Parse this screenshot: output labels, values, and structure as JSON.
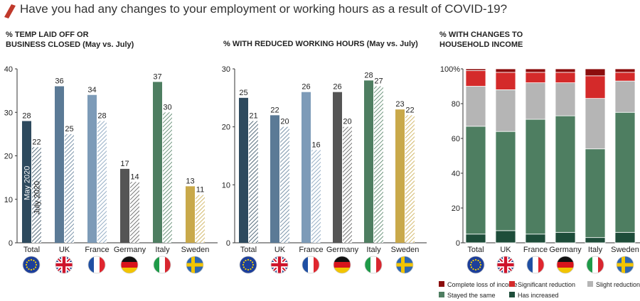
{
  "title": "Have you had any changes to your employment or working hours as a result of COVID-19?",
  "accent_color": "#c0392b",
  "flags": [
    "eu-flag-icon",
    "uk-flag-icon",
    "france-flag-icon",
    "germany-flag-icon",
    "italy-flag-icon",
    "sweden-flag-icon"
  ],
  "chart_data": [
    {
      "type": "bar",
      "title_line1": "% TEMP LAID OFF OR",
      "title_line2": "BUSINESS CLOSED (May vs. July)",
      "categories": [
        "Total",
        "UK",
        "France",
        "Germany",
        "Italy",
        "Sweden"
      ],
      "series": [
        {
          "name": "May 2020",
          "values": [
            28,
            36,
            34,
            17,
            37,
            13
          ]
        },
        {
          "name": "July 2020",
          "values": [
            22,
            25,
            28,
            14,
            30,
            11
          ]
        }
      ],
      "colors": [
        "#2e4a5e",
        "#5b7a96",
        "#7d9bb8",
        "#555555",
        "#4e7e61",
        "#c9a94a"
      ],
      "ylim": [
        0,
        40
      ],
      "yticks": [
        0,
        10,
        20,
        30,
        40
      ],
      "grid": false
    },
    {
      "type": "bar",
      "title_line1": "% WITH REDUCED WORKING HOURS (May vs. July)",
      "categories": [
        "Total",
        "UK",
        "France",
        "Germany",
        "Italy",
        "Sweden"
      ],
      "series": [
        {
          "values": [
            25,
            22,
            26,
            26,
            28,
            23
          ]
        },
        {
          "values": [
            21,
            20,
            16,
            20,
            27,
            22
          ]
        }
      ],
      "colors": [
        "#2e4a5e",
        "#5b7a96",
        "#7d9bb8",
        "#555555",
        "#4e7e61",
        "#c9a94a"
      ],
      "ylim": [
        0,
        30
      ],
      "yticks": [
        0,
        10,
        20,
        30
      ],
      "grid": false
    },
    {
      "type": "bar",
      "stacked": true,
      "title_line1": "% WITH CHANGES TO",
      "title_line2": "HOUSEHOLD INCOME",
      "categories": [
        "Total",
        "UK",
        "France",
        "Germany",
        "Italy",
        "Sweden"
      ],
      "series": [
        {
          "name": "Has increased",
          "color": "#1e4d3a",
          "values": [
            5,
            7,
            5,
            6,
            3,
            6
          ]
        },
        {
          "name": "Stayed the same",
          "color": "#4e7e61",
          "values": [
            62,
            57,
            66,
            67,
            51,
            69
          ]
        },
        {
          "name": "Slight reduction",
          "color": "#b5b5b5",
          "values": [
            23,
            24,
            21,
            19,
            29,
            18
          ]
        },
        {
          "name": "Significant reduction",
          "color": "#d42a2a",
          "values": [
            9,
            10,
            6,
            6,
            13,
            5
          ]
        },
        {
          "name": "Complete loss of income",
          "color": "#8b0d0d",
          "values": [
            1,
            2,
            2,
            2,
            4,
            2
          ]
        }
      ],
      "ylim": [
        0,
        100
      ],
      "yticks": [
        "0",
        "20",
        "40",
        "60",
        "80",
        "100%"
      ],
      "ytick_values": [
        0,
        20,
        40,
        60,
        80,
        100
      ],
      "legend_position": "bottom",
      "legend_order": [
        "Complete loss of income",
        "Significant reduction",
        "Slight reduction",
        "Stayed the same",
        "Has increased"
      ],
      "grid": false
    }
  ]
}
